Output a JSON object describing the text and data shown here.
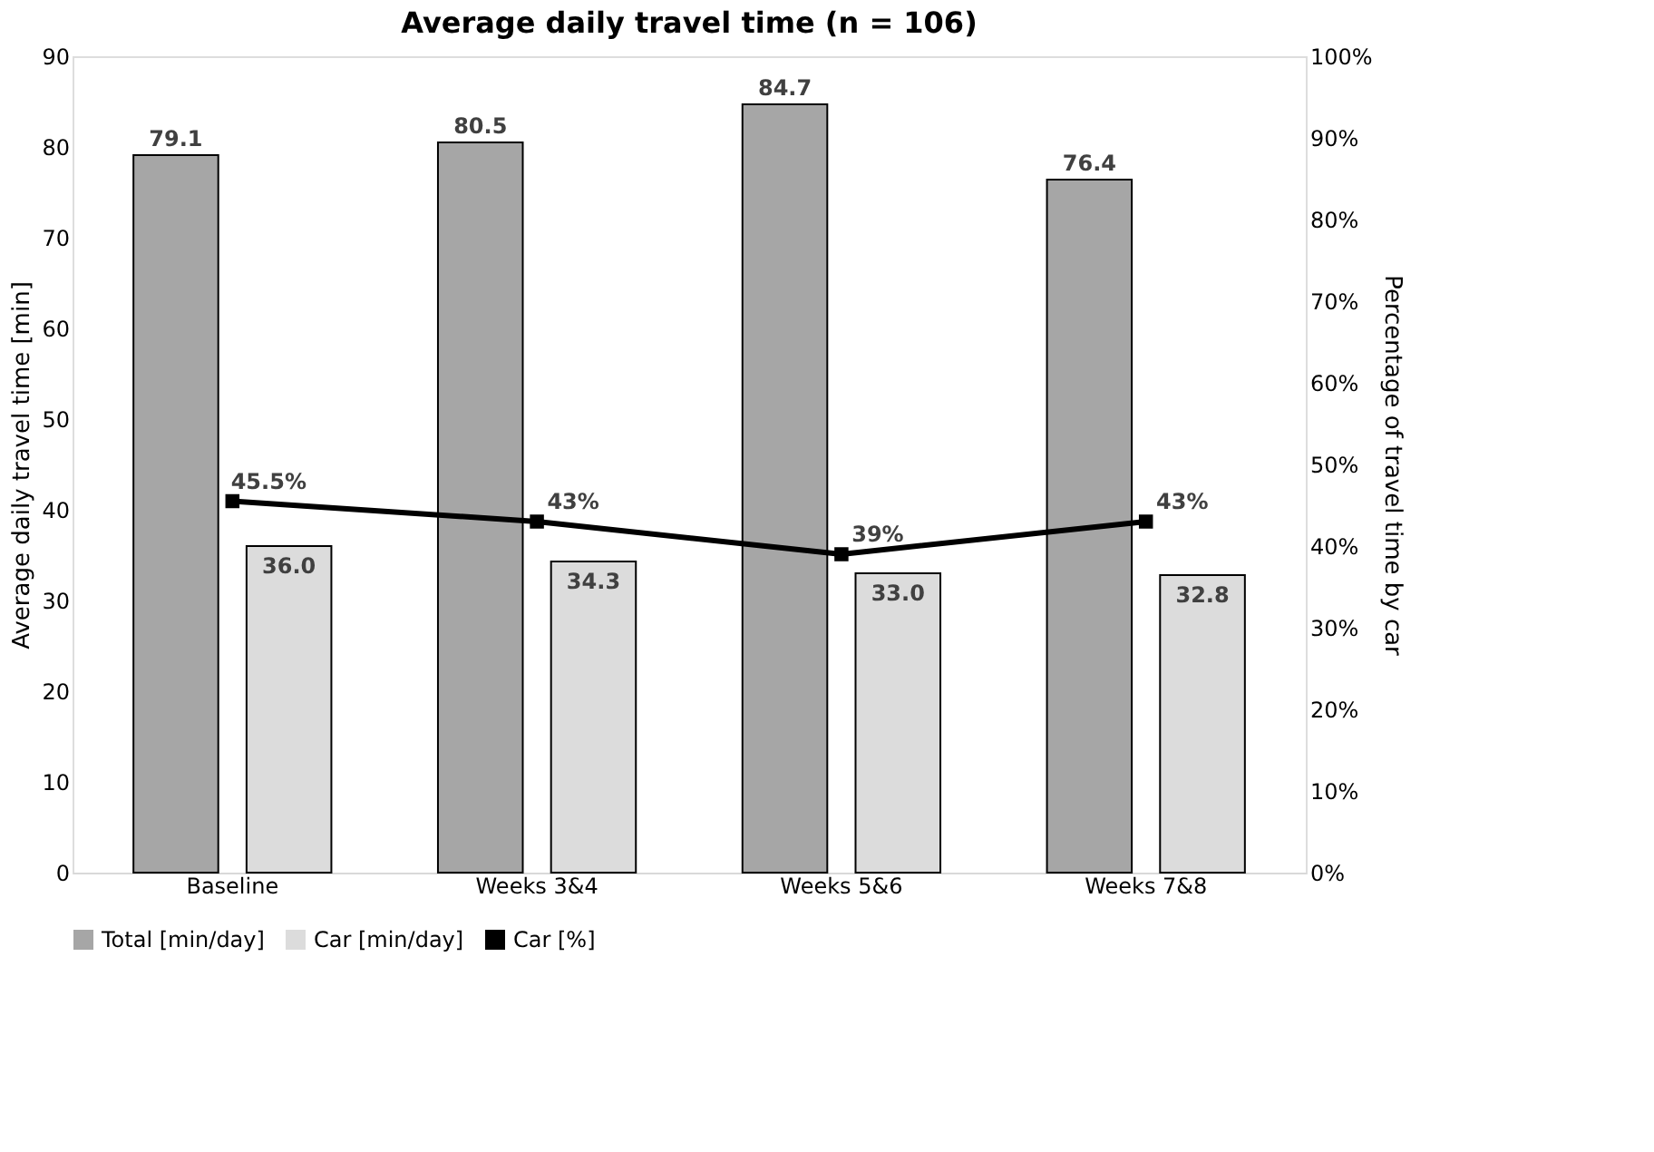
{
  "chart_data": {
    "type": "bar",
    "title": "Average daily travel time (n = 106)",
    "categories": [
      "Baseline",
      "Weeks 3&4",
      "Weeks 5&6",
      "Weeks 7&8"
    ],
    "series": [
      {
        "name": "Total [min/day]",
        "color": "#a6a6a6",
        "values": [
          79.1,
          80.5,
          84.7,
          76.4
        ],
        "value_labels": [
          "79.1",
          "80.5",
          "84.7",
          "76.4"
        ]
      },
      {
        "name": "Car [min/day]",
        "color": "#dcdcdc",
        "values": [
          36.0,
          34.3,
          33.0,
          32.8
        ],
        "value_labels": [
          "36.0",
          "34.3",
          "33.0",
          "32.8"
        ]
      },
      {
        "name": "Car [%]",
        "type": "line",
        "axis": "y2",
        "color": "#000000",
        "marker": "square",
        "values": [
          45.5,
          43,
          39,
          43
        ],
        "value_labels": [
          "45.5%",
          "43%",
          "39%",
          "43%"
        ]
      }
    ],
    "ylabel": "Average daily travel time [min]",
    "y2label": "Percentage of travel time by car",
    "ylim": [
      0,
      90
    ],
    "yticks": [
      0,
      10,
      20,
      30,
      40,
      50,
      60,
      70,
      80,
      90
    ],
    "y2lim": [
      0,
      100
    ],
    "y2ticks": [
      {
        "value": 0,
        "label": "0%"
      },
      {
        "value": 10,
        "label": "10%"
      },
      {
        "value": 20,
        "label": "20%"
      },
      {
        "value": 30,
        "label": "30%"
      },
      {
        "value": 40,
        "label": "40%"
      },
      {
        "value": 50,
        "label": "50%"
      },
      {
        "value": 60,
        "label": "60%"
      },
      {
        "value": 70,
        "label": "70%"
      },
      {
        "value": 80,
        "label": "80%"
      },
      {
        "value": 90,
        "label": "90%"
      },
      {
        "value": 100,
        "label": "100%"
      }
    ],
    "legend": "bottom",
    "grid": false
  }
}
